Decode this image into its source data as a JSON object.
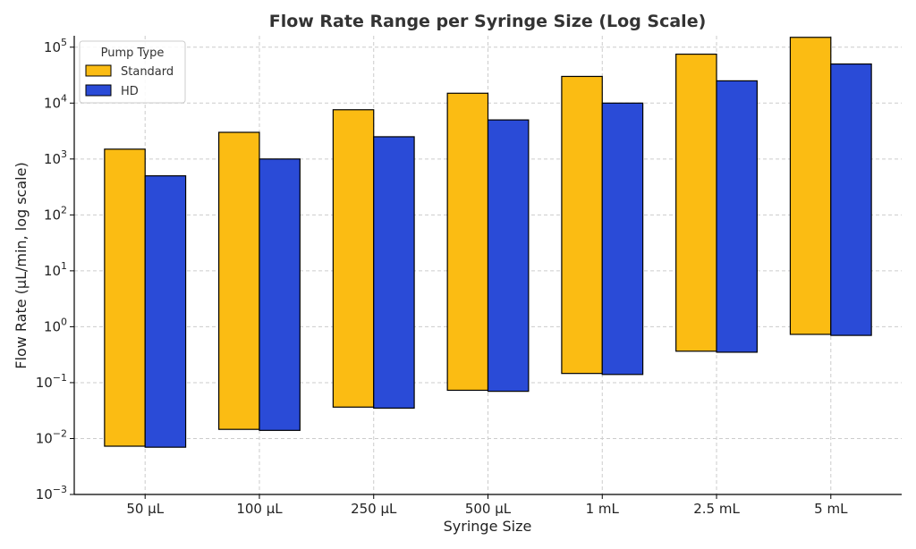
{
  "chart_data": {
    "type": "bar",
    "title": "Flow Rate Range per Syringe Size (Log Scale)",
    "xlabel": "Syringe Size",
    "ylabel": "Flow Rate (µL/min, log scale)",
    "y_scale": "log",
    "ylim": [
      0.001,
      160000
    ],
    "y_ticks": [
      {
        "value": 0.001,
        "base": "10",
        "exp": "−3"
      },
      {
        "value": 0.01,
        "base": "10",
        "exp": "−2"
      },
      {
        "value": 0.1,
        "base": "10",
        "exp": "−1"
      },
      {
        "value": 1,
        "base": "10",
        "exp": "0"
      },
      {
        "value": 10,
        "base": "10",
        "exp": "1"
      },
      {
        "value": 100,
        "base": "10",
        "exp": "2"
      },
      {
        "value": 1000,
        "base": "10",
        "exp": "3"
      },
      {
        "value": 10000,
        "base": "10",
        "exp": "4"
      },
      {
        "value": 100000,
        "base": "10",
        "exp": "5"
      }
    ],
    "categories": [
      "50 µL",
      "100 µL",
      "250 µL",
      "500 µL",
      "1 mL",
      "2.5 mL",
      "5 mL"
    ],
    "grid": true,
    "legend": {
      "title": "Pump Type",
      "position": "top-left"
    },
    "series": [
      {
        "name": "Standard",
        "color": "#FBBC13",
        "min": [
          0.0073,
          0.0146,
          0.0365,
          0.073,
          0.146,
          0.365,
          0.73
        ],
        "max": [
          1500,
          3000,
          7600,
          15000,
          30000,
          75000,
          150000
        ]
      },
      {
        "name": "HD",
        "color": "#2A4BD7",
        "min": [
          0.007,
          0.014,
          0.035,
          0.07,
          0.14,
          0.35,
          0.7
        ],
        "max": [
          500,
          1000,
          2500,
          5000,
          10000,
          25000,
          50000
        ]
      }
    ]
  }
}
